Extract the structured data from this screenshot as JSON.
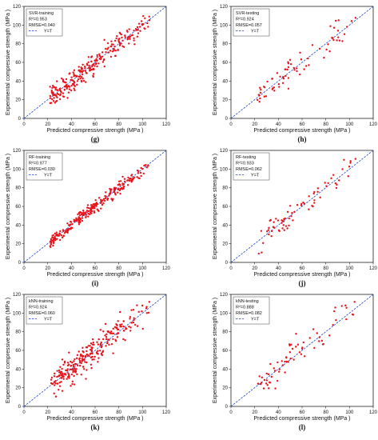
{
  "colors": {
    "points": "#e8141c",
    "identity_line": "#1f3fd6",
    "frame": "#222222",
    "background": "#ffffff"
  },
  "axes": {
    "xlabel": "Predicted compressive strength (MPa )",
    "ylabel": "Experimental compressive strength (MPa )",
    "ticks": [
      "0",
      "20",
      "40",
      "60",
      "80",
      "100",
      "120"
    ]
  },
  "chart_data": [
    {
      "type": "scatter",
      "panel_label": "(g)",
      "legend": [
        "SVR-training",
        "R²=0.953",
        "RMSE=0.040",
        "Y=T"
      ],
      "xlim": [
        0,
        120
      ],
      "ylim": [
        0,
        120
      ],
      "grid": false,
      "legend_position": "top-left",
      "n_points": 260,
      "spread": 6,
      "seed": 11
    },
    {
      "type": "scatter",
      "panel_label": "(h)",
      "legend": [
        "SVR-testing",
        "R²=0.924",
        "RMSE=0.057",
        "Y=T"
      ],
      "xlim": [
        0,
        120
      ],
      "ylim": [
        0,
        120
      ],
      "grid": false,
      "legend_position": "top-left",
      "n_points": 70,
      "spread": 6.5,
      "seed": 23
    },
    {
      "type": "scatter",
      "panel_label": "(i)",
      "legend": [
        "RF-training",
        "R²=0.977",
        "RMSE=0.030",
        "Y=T"
      ],
      "xlim": [
        0,
        120
      ],
      "ylim": [
        0,
        120
      ],
      "grid": false,
      "legend_position": "top-left",
      "n_points": 260,
      "spread": 3.5,
      "seed": 37
    },
    {
      "type": "scatter",
      "panel_label": "(j)",
      "legend": [
        "RF-testing",
        "R²=0.933",
        "RMSE=0.062",
        "Y=T"
      ],
      "xlim": [
        0,
        120
      ],
      "ylim": [
        0,
        120
      ],
      "grid": false,
      "legend_position": "top-left",
      "n_points": 70,
      "spread": 6,
      "seed": 41
    },
    {
      "type": "scatter",
      "panel_label": "(k)",
      "legend": [
        "kNN-training",
        "R²=0.924",
        "RMSE=0.060",
        "Y=T"
      ],
      "xlim": [
        0,
        120
      ],
      "ylim": [
        0,
        120
      ],
      "grid": false,
      "legend_position": "top-left",
      "n_points": 260,
      "spread": 8,
      "seed": 53
    },
    {
      "type": "scatter",
      "panel_label": "(l)",
      "legend": [
        "kNN-testing",
        "R²=0.888",
        "RMSE=0.082",
        "Y=T"
      ],
      "xlim": [
        0,
        120
      ],
      "ylim": [
        0,
        120
      ],
      "grid": false,
      "legend_position": "top-left",
      "n_points": 70,
      "spread": 9,
      "seed": 67
    }
  ]
}
